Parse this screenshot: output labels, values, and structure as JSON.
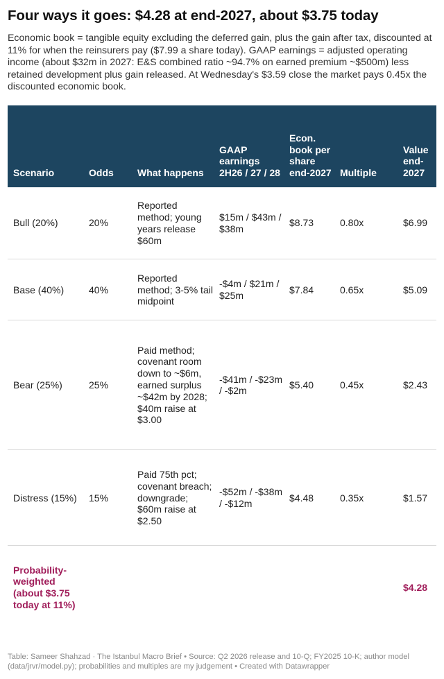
{
  "title": "Four ways it goes: $4.28 at end-2027, about $3.75 today",
  "subtitle": "Economic book = tangible equity excluding the deferred gain, plus the gain after tax, discounted at 11% for when the reinsurers pay ($7.99 a share today). GAAP earnings = adjusted operating income (about $32m in 2027: E&S combined ratio ~94.7% on earned premium ~$500m) less retained development plus gain released. At Wednesday's $3.59 close the market pays 0.45x the discounted economic book.",
  "table": {
    "headers": {
      "scenario": "Scenario",
      "odds": "Odds",
      "what": "What happens",
      "gaap": "GAAP earnings 2H26 / 27 / 28",
      "econ": "Econ. book per share end-2027",
      "multiple": "Multiple",
      "value": "Value end-2027"
    },
    "rows": [
      {
        "scenario": "Bull (20%)",
        "odds": "20%",
        "what": "Reported method; young years release $60m",
        "gaap": "$15m / $43m / $38m",
        "econ": "$8.73",
        "multiple": "0.80x",
        "value": "$6.99"
      },
      {
        "scenario": "Base (40%)",
        "odds": "40%",
        "what": "Reported method; 3-5% tail midpoint",
        "gaap": "-$4m / $21m / $25m",
        "econ": "$7.84",
        "multiple": "0.65x",
        "value": "$5.09"
      },
      {
        "scenario": "Bear (25%)",
        "odds": "25%",
        "what": "Paid method; covenant room down to ~$6m, earned surplus ~$42m by 2028; $40m raise at $3.00",
        "gaap": "-$41m / -$23m / -$2m",
        "econ": "$5.40",
        "multiple": "0.45x",
        "value": "$2.43"
      },
      {
        "scenario": "Distress (15%)",
        "odds": "15%",
        "what": "Paid 75th pct; covenant breach; downgrade; $60m raise at $2.50",
        "gaap": "-$52m / -$38m / -$12m",
        "econ": "$4.48",
        "multiple": "0.35x",
        "value": "$1.57"
      }
    ],
    "total": {
      "scenario": "Probability-weighted (about $3.75 today at 11%)",
      "value": "$4.28"
    }
  },
  "footer": "Table: Sameer Shahzad · The Istanbul Macro Brief • Source: Q2 2026 release and 10-Q; FY2025 10-K; author model (data/jrvr/model.py); probabilities and multiples are my judgement • Created with Datawrapper",
  "colors": {
    "header_bg": "#1d4560",
    "total_text": "#a01d5a"
  }
}
